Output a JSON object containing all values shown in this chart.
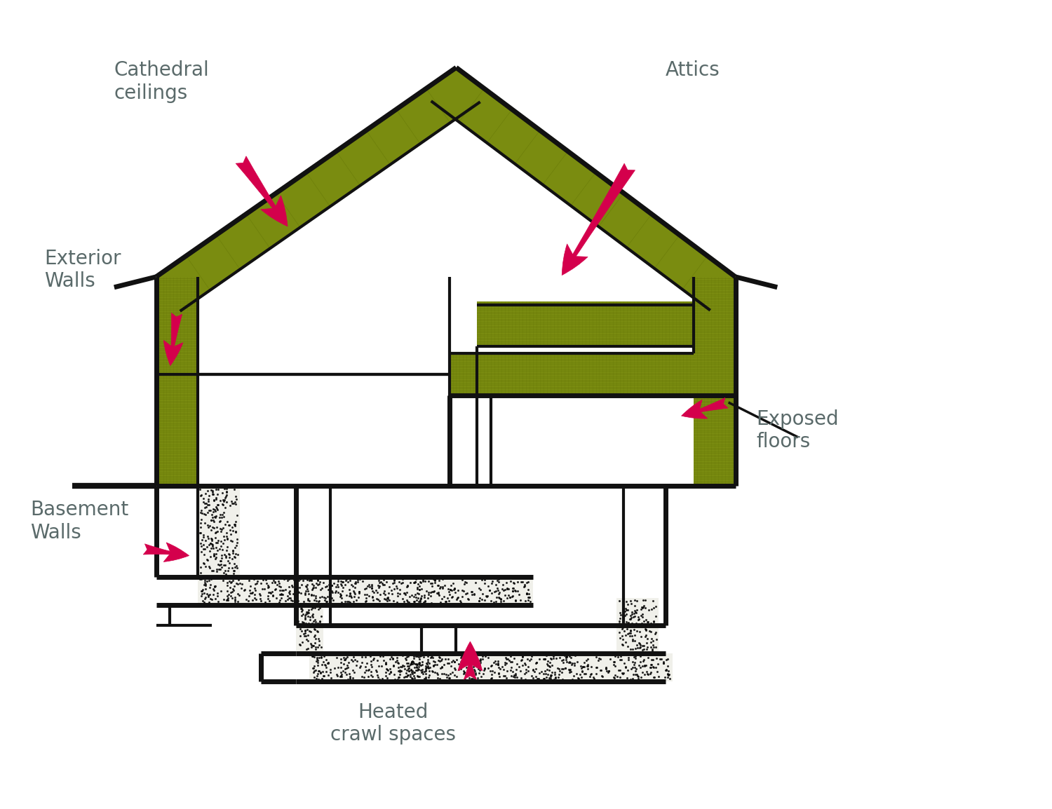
{
  "bg_color": "#ffffff",
  "ins_color": "#7a8c10",
  "wall_color": "#111111",
  "dot_color": "#f0f0ea",
  "arrow_color": "#d4004c",
  "text_color": "#5a6a6a",
  "lw_outer": 5.0,
  "lw_inner": 3.0,
  "labels": {
    "cathedral": "Cathedral\nceilings",
    "attics": "Attics",
    "exterior": "Exterior\nWalls",
    "basement": "Basement\nWalls",
    "heated": "Heated\ncrawl spaces",
    "exposed": "Exposed\nfloors"
  },
  "label_fontsize": 20,
  "figsize": [
    15.0,
    11.54
  ]
}
